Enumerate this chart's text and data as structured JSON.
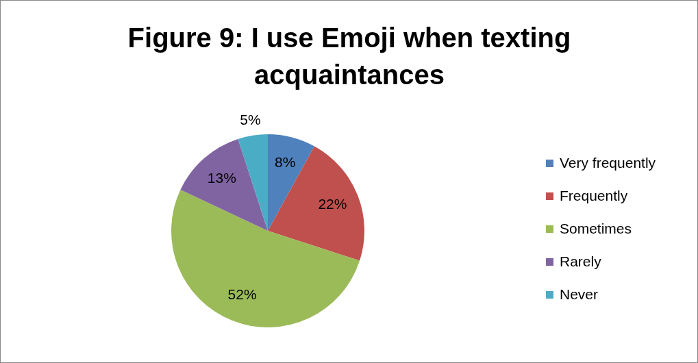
{
  "chart_data": {
    "type": "pie",
    "title": "Figure 9:  I use Emoji when texting acquaintances",
    "categories": [
      "Very frequently",
      "Frequently",
      "Sometimes",
      "Rarely",
      "Never"
    ],
    "values": [
      8,
      22,
      52,
      13,
      5
    ],
    "colors": [
      "#4f81bd",
      "#c0504d",
      "#9bbb59",
      "#8064a2",
      "#4bacc6"
    ],
    "value_labels": [
      "8%",
      "22%",
      "52%",
      "13%",
      "5%"
    ],
    "legend": "right"
  }
}
